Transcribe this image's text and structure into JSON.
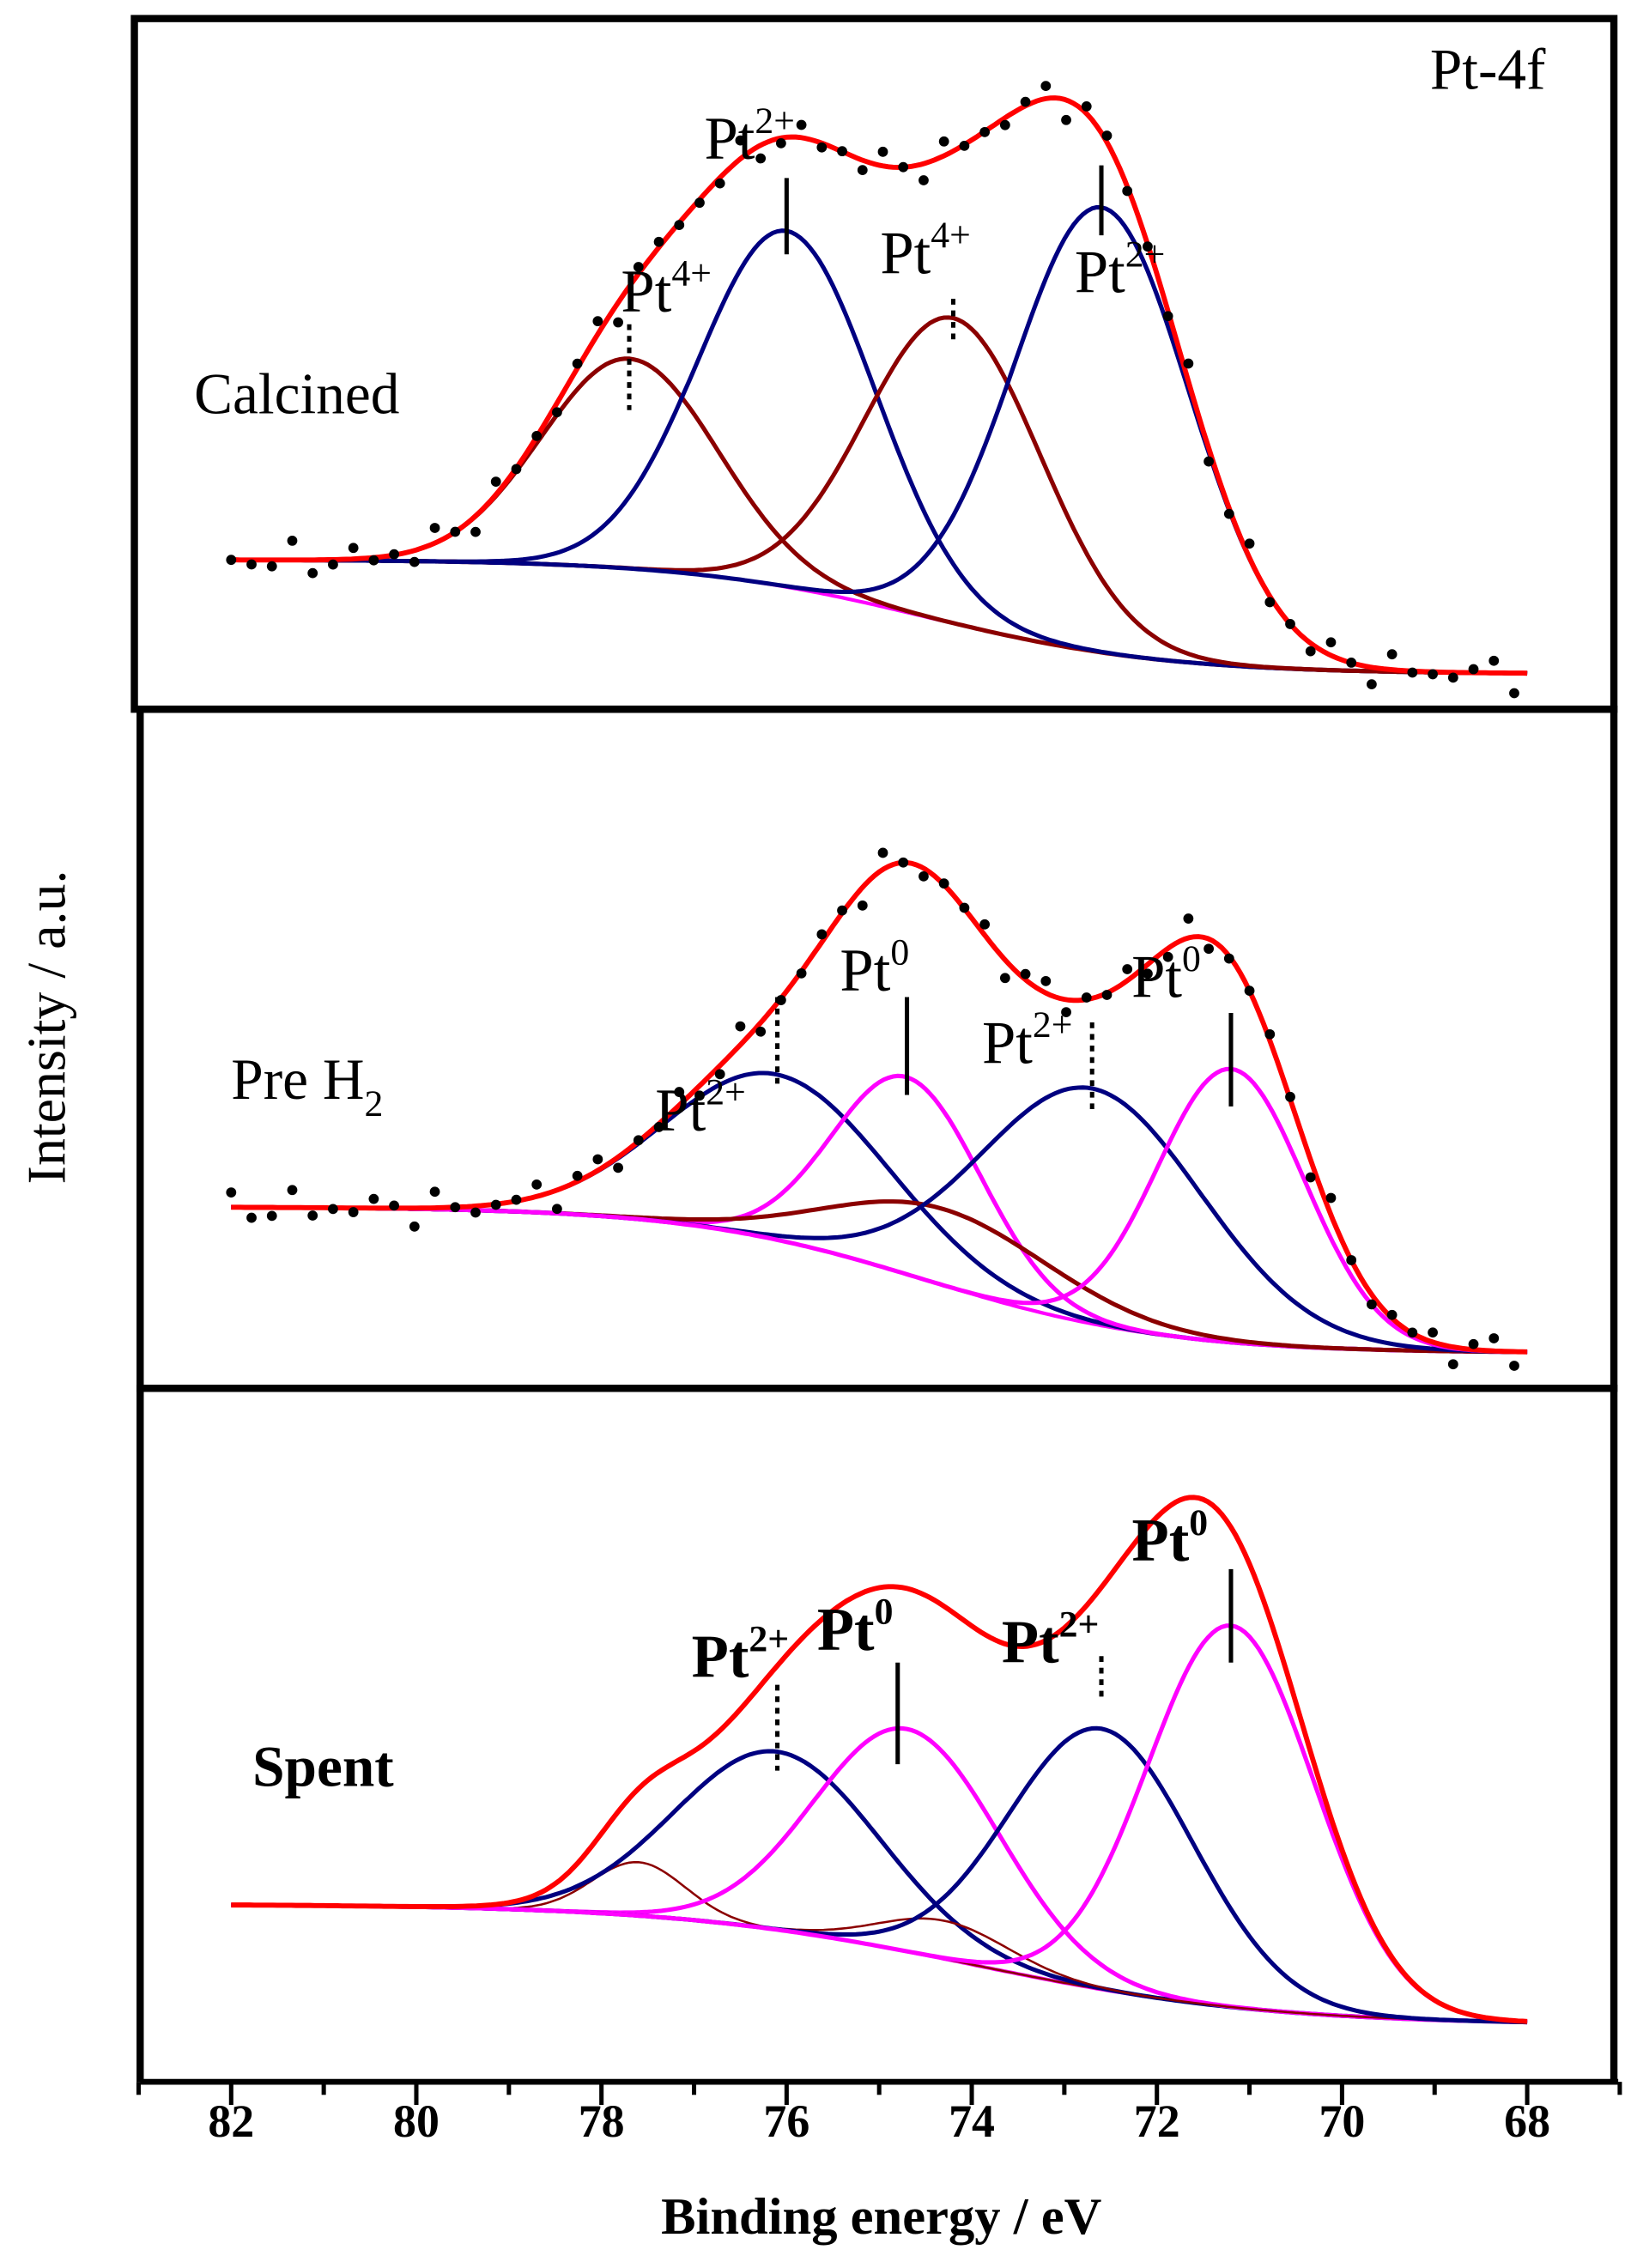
{
  "chart_data": {
    "type": "line",
    "title": "",
    "xlabel": "Binding energy / eV",
    "ylabel": "Intensity / a.u.",
    "xlim": [
      83,
      67
    ],
    "x_ticks": [
      82,
      80,
      78,
      76,
      74,
      72,
      70,
      68
    ],
    "x_range": [
      82,
      68
    ],
    "colors": {
      "envelope": "#ff0000",
      "pt2": "#000080",
      "pt4": "#8b0000",
      "pt0": "#ff00ff",
      "background": "#ff00ff",
      "dots": "#000000"
    },
    "panels": [
      {
        "name": "Calcined",
        "ylim": [
          0,
          100
        ],
        "background": {
          "high": 19,
          "low": 1,
          "center": 74.5,
          "width": 1.3
        },
        "experimental_points": true,
        "peaks": [
          {
            "species": "Pt4+",
            "center": 77.7,
            "amplitude": 33,
            "sigma": 0.95,
            "color": "pt4"
          },
          {
            "species": "Pt2+",
            "center": 76.0,
            "amplitude": 56,
            "sigma": 0.95,
            "color": "pt2"
          },
          {
            "species": "Pt4+",
            "center": 74.2,
            "amplitude": 48,
            "sigma": 0.95,
            "color": "pt4"
          },
          {
            "species": "Pt2+",
            "center": 72.6,
            "amplitude": 70,
            "sigma": 0.95,
            "color": "pt2"
          }
        ],
        "annotations": [
          {
            "text": "Calcined",
            "x": 82.4,
            "y": 42,
            "bold": false
          },
          {
            "text": "Pt-4f",
            "x": 69.05,
            "y": 93,
            "bold": false
          }
        ],
        "peak_labels": [
          {
            "base": "Pt",
            "sup": "4+",
            "x": 77.3,
            "y": 58,
            "marker_x": 77.7,
            "marker_y": [
              56,
              42.5
            ],
            "dotted": true
          },
          {
            "base": "Pt",
            "sup": "2+",
            "x": 76.4,
            "y": 82,
            "marker_x": 76.0,
            "marker_y": [
              79,
              67
            ],
            "dotted": false
          },
          {
            "base": "Pt",
            "sup": "4+",
            "x": 74.5,
            "y": 64,
            "marker_x": 74.2,
            "marker_y": [
              60,
              53
            ],
            "dotted": true
          },
          {
            "base": "Pt",
            "sup": "2+",
            "x": 72.4,
            "y": 61,
            "marker_x": 72.6,
            "marker_y": [
              81,
              70
            ],
            "dotted": false
          }
        ]
      },
      {
        "name": "Pre H2",
        "ylim": [
          0,
          100
        ],
        "background": {
          "high": 24,
          "low": 1,
          "center": 74.5,
          "width": 1.3
        },
        "experimental_points": true,
        "peaks": [
          {
            "species": "Pt2+",
            "center": 76.1,
            "amplitude": 26,
            "sigma": 1.2,
            "color": "pt2"
          },
          {
            "species": "Pt0",
            "center": 74.7,
            "amplitude": 31,
            "sigma": 0.8,
            "color": "pt0"
          },
          {
            "species": "",
            "center": 74.3,
            "amplitude": 12,
            "sigma": 1.2,
            "color": "pt4"
          },
          {
            "species": "Pt2+",
            "center": 72.7,
            "amplitude": 37,
            "sigma": 1.2,
            "color": "pt2"
          },
          {
            "species": "Pt0",
            "center": 71.2,
            "amplitude": 43,
            "sigma": 0.8,
            "color": "pt0"
          }
        ],
        "annotations": [
          {
            "text": "Pre H",
            "sub": "2",
            "x": 82.0,
            "y": 41,
            "bold": false
          }
        ],
        "peak_labels": [
          {
            "base": "Pt",
            "sup": "2+",
            "x": 76.93,
            "y": 36,
            "marker_x": 76.1,
            "marker_y": [
              57,
              43
            ],
            "dotted": true
          },
          {
            "base": "Pt",
            "sup": "0",
            "x": 75.05,
            "y": 58,
            "marker_x": 74.7,
            "marker_y": [
              57,
              41.6
            ],
            "dotted": false
          },
          {
            "base": "Pt",
            "sup": "2+",
            "x": 73.4,
            "y": 46.6,
            "marker_x": 72.7,
            "marker_y": [
              53,
              38.6
            ],
            "dotted": true
          },
          {
            "base": "Pt",
            "sup": "0",
            "x": 71.9,
            "y": 57,
            "marker_x": 71.2,
            "marker_y": [
              54.5,
              39.8
            ],
            "dotted": false
          }
        ]
      },
      {
        "name": "Spent",
        "ylim": [
          0,
          100
        ],
        "background": {
          "high": 20,
          "low": 1,
          "center": 74.0,
          "width": 1.6
        },
        "experimental_points": false,
        "peaks": [
          {
            "species": "",
            "center": 77.6,
            "amplitude": 8.4,
            "sigma": 0.5,
            "color": "pt4"
          },
          {
            "species": "Pt2+",
            "center": 76.1,
            "amplitude": 28,
            "sigma": 1.1,
            "color": "pt2"
          },
          {
            "species": "Pt0",
            "center": 74.7,
            "amplitude": 35,
            "sigma": 1.0,
            "color": "pt0"
          },
          {
            "species": "",
            "center": 74.3,
            "amplitude": 6,
            "sigma": 0.7,
            "color": "pt4"
          },
          {
            "species": "Pt2+",
            "center": 72.6,
            "amplitude": 41,
            "sigma": 1.0,
            "color": "pt2"
          },
          {
            "species": "Pt0",
            "center": 71.2,
            "amplitude": 60,
            "sigma": 0.9,
            "color": "pt0"
          }
        ],
        "annotations": [
          {
            "text": "Spent",
            "x": 81.77,
            "y": 38.6,
            "bold": true
          }
        ],
        "peak_labels": [
          {
            "base": "Pt",
            "sup": "2+",
            "x": 76.5,
            "y": 55.7,
            "marker_x": 76.1,
            "marker_y": [
              54.5,
              41
            ],
            "dotted": true,
            "bold": true
          },
          {
            "base": "Pt",
            "sup": "0",
            "x": 75.26,
            "y": 60,
            "marker_x": 74.8,
            "marker_y": [
              58,
              42
            ],
            "dotted": false,
            "bold": true
          },
          {
            "base": "Pt",
            "sup": "2+",
            "x": 73.15,
            "y": 58,
            "marker_x": 72.6,
            "marker_y": [
              59,
              52
            ],
            "dotted": true,
            "bold": true
          },
          {
            "base": "Pt",
            "sup": "0",
            "x": 71.86,
            "y": 74,
            "marker_x": 71.2,
            "marker_y": [
              72.7,
              58
            ],
            "dotted": false,
            "bold": true
          }
        ]
      }
    ]
  }
}
